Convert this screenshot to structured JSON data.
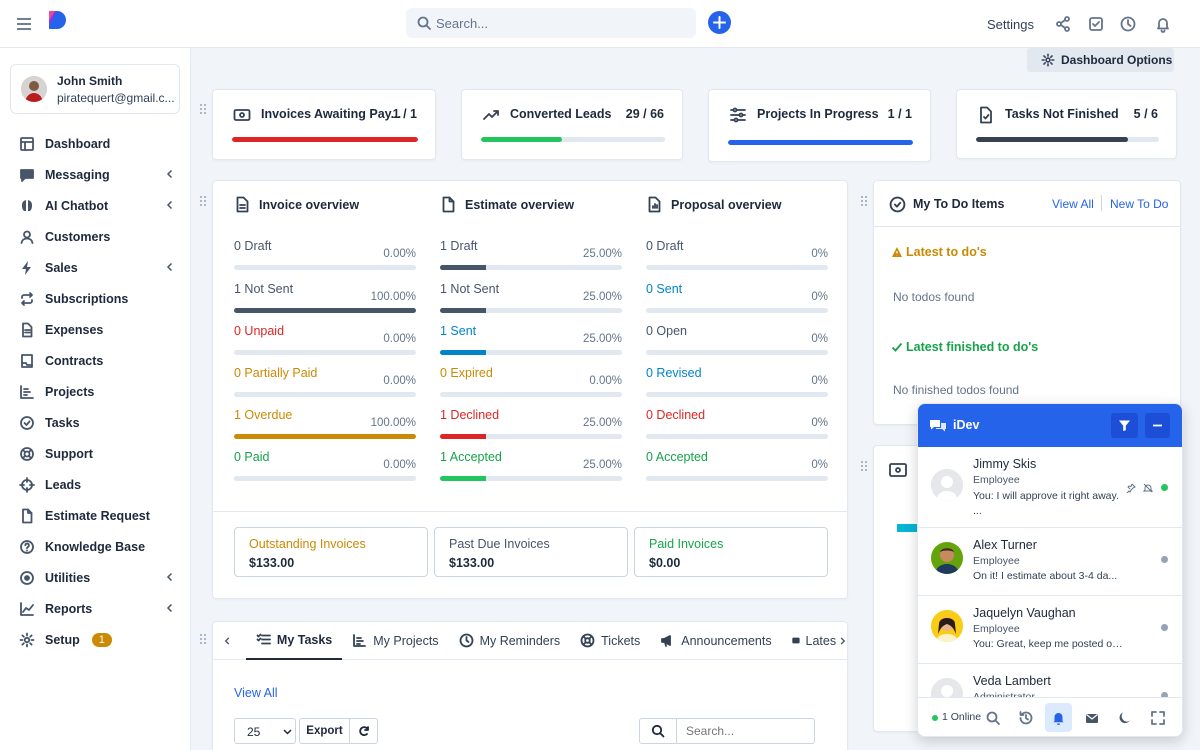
{
  "topbar": {
    "search_placeholder": "Search...",
    "settings_label": "Settings"
  },
  "user": {
    "name": "John Smith",
    "email": "piratequert@gmail.c..."
  },
  "nav": [
    {
      "label": "Dashboard",
      "icon": "dashboard-icon",
      "chevron": false
    },
    {
      "label": "Messaging",
      "icon": "message-icon",
      "chevron": true
    },
    {
      "label": "AI Chatbot",
      "icon": "brain-icon",
      "chevron": true
    },
    {
      "label": "Customers",
      "icon": "user-icon",
      "chevron": false
    },
    {
      "label": "Sales",
      "icon": "bolt-icon",
      "chevron": true
    },
    {
      "label": "Subscriptions",
      "icon": "repeat-icon",
      "chevron": false
    },
    {
      "label": "Expenses",
      "icon": "file-icon",
      "chevron": false
    },
    {
      "label": "Contracts",
      "icon": "contract-icon",
      "chevron": false
    },
    {
      "label": "Projects",
      "icon": "chart-icon",
      "chevron": false
    },
    {
      "label": "Tasks",
      "icon": "check-circle-icon",
      "chevron": false
    },
    {
      "label": "Support",
      "icon": "lifebuoy-icon",
      "chevron": false
    },
    {
      "label": "Leads",
      "icon": "crosshair-icon",
      "chevron": false
    },
    {
      "label": "Estimate Request",
      "icon": "document-icon",
      "chevron": false
    },
    {
      "label": "Knowledge Base",
      "icon": "question-icon",
      "chevron": false
    },
    {
      "label": "Utilities",
      "icon": "disc-icon",
      "chevron": true
    },
    {
      "label": "Reports",
      "icon": "line-chart-icon",
      "chevron": true
    },
    {
      "label": "Setup",
      "icon": "gear-icon",
      "chevron": false,
      "badge": "1"
    }
  ],
  "dashboard_options": "Dashboard Options",
  "stats": [
    {
      "title": "Invoices Awaiting Pay...",
      "value": "1 / 1",
      "progress": 1.0,
      "color": "#dc2626",
      "icon": "invoice-icon"
    },
    {
      "title": "Converted Leads",
      "value": "29 / 66",
      "progress": 0.44,
      "color": "#22c55e",
      "icon": "trending-up-icon"
    },
    {
      "title": "Projects In Progress",
      "value": "1 / 1",
      "progress": 1.0,
      "color": "#2563eb",
      "icon": "sliders-icon"
    },
    {
      "title": "Tasks Not Finished",
      "value": "5 / 6",
      "progress": 0.83,
      "color": "#374151",
      "icon": "file-check-icon"
    }
  ],
  "overviews": [
    {
      "title": "Invoice overview",
      "rows": [
        {
          "label": "0 Draft",
          "pct": "0.00%",
          "value": 0,
          "color": "#475569",
          "bar": "#e2e8f0"
        },
        {
          "label": "1 Not Sent",
          "pct": "100.00%",
          "value": 1.0,
          "color": "#475569",
          "bar": "#475569"
        },
        {
          "label": "0 Unpaid",
          "pct": "0.00%",
          "value": 0,
          "color": "#dc2626",
          "bar": "#dc2626"
        },
        {
          "label": "0 Partially Paid",
          "pct": "0.00%",
          "value": 0,
          "color": "#ca8a04",
          "bar": "#ca8a04"
        },
        {
          "label": "1 Overdue",
          "pct": "100.00%",
          "value": 1.0,
          "color": "#ca8a04",
          "bar": "#ca8a04"
        },
        {
          "label": "0 Paid",
          "pct": "0.00%",
          "value": 0,
          "color": "#16a34a",
          "bar": "#16a34a"
        }
      ]
    },
    {
      "title": "Estimate overview",
      "rows": [
        {
          "label": "1 Draft",
          "pct": "25.00%",
          "value": 0.25,
          "color": "#475569",
          "bar": "#475569"
        },
        {
          "label": "1 Not Sent",
          "pct": "25.00%",
          "value": 0.25,
          "color": "#475569",
          "bar": "#475569"
        },
        {
          "label": "1 Sent",
          "pct": "25.00%",
          "value": 0.25,
          "color": "#0284c7",
          "bar": "#0284c7"
        },
        {
          "label": "0 Expired",
          "pct": "0.00%",
          "value": 0,
          "color": "#ca8a04",
          "bar": "#ca8a04"
        },
        {
          "label": "1 Declined",
          "pct": "25.00%",
          "value": 0.25,
          "color": "#dc2626",
          "bar": "#dc2626"
        },
        {
          "label": "1 Accepted",
          "pct": "25.00%",
          "value": 0.25,
          "color": "#16a34a",
          "bar": "#22c55e"
        }
      ]
    },
    {
      "title": "Proposal overview",
      "rows": [
        {
          "label": "0 Draft",
          "pct": "0%",
          "value": 0,
          "color": "#475569",
          "bar": "#475569"
        },
        {
          "label": "0 Sent",
          "pct": "0%",
          "value": 0,
          "color": "#0284c7",
          "bar": "#0284c7"
        },
        {
          "label": "0 Open",
          "pct": "0%",
          "value": 0,
          "color": "#475569",
          "bar": "#475569"
        },
        {
          "label": "0 Revised",
          "pct": "0%",
          "value": 0,
          "color": "#0284c7",
          "bar": "#0284c7"
        },
        {
          "label": "0 Declined",
          "pct": "0%",
          "value": 0,
          "color": "#dc2626",
          "bar": "#dc2626"
        },
        {
          "label": "0 Accepted",
          "pct": "0%",
          "value": 0,
          "color": "#16a34a",
          "bar": "#16a34a"
        }
      ]
    }
  ],
  "summary": [
    {
      "label": "Outstanding Invoices",
      "value": "$133.00",
      "color": "#ca8a04"
    },
    {
      "label": "Past Due Invoices",
      "value": "$133.00",
      "color": "#475569"
    },
    {
      "label": "Paid Invoices",
      "value": "$0.00",
      "color": "#16a34a"
    }
  ],
  "tabs": [
    {
      "label": "My Tasks",
      "icon": "list-check-icon",
      "active": true
    },
    {
      "label": "My Projects",
      "icon": "chart-icon",
      "active": false
    },
    {
      "label": "My Reminders",
      "icon": "clock-icon",
      "active": false
    },
    {
      "label": "Tickets",
      "icon": "lifebuoy-icon",
      "active": false
    },
    {
      "label": "Announcements",
      "icon": "megaphone-icon",
      "active": false
    },
    {
      "label": "Lates",
      "icon": "card-icon",
      "active": false
    }
  ],
  "tasks_panel": {
    "view_all": "View All",
    "page_size": "25",
    "export_label": "Export",
    "search_placeholder": "Search..."
  },
  "todo": {
    "title": "My To Do Items",
    "view_all": "View All",
    "new_todo": "New To Do",
    "latest_heading": "Latest to do's",
    "latest_empty": "No todos found",
    "finished_heading": "Latest finished to do's",
    "finished_empty": "No finished todos found"
  },
  "chat": {
    "title": "iDev",
    "online": "1 Online",
    "contacts": [
      {
        "name": "Jimmy Skis",
        "role": "Employee",
        "message": "You: I will approve it right away. ...",
        "status": "online"
      },
      {
        "name": "Alex Turner",
        "role": "Employee",
        "message": "On it! I estimate about 3-4 da...",
        "status": "offline"
      },
      {
        "name": "Jaquelyn Vaughan",
        "role": "Employee",
        "message": "You: Great, keep me posted on the p...",
        "status": "offline"
      },
      {
        "name": "Veda Lambert",
        "role": "Administrator",
        "message": "",
        "status": "offline"
      }
    ]
  },
  "colors": {
    "accent": "#2563eb"
  }
}
